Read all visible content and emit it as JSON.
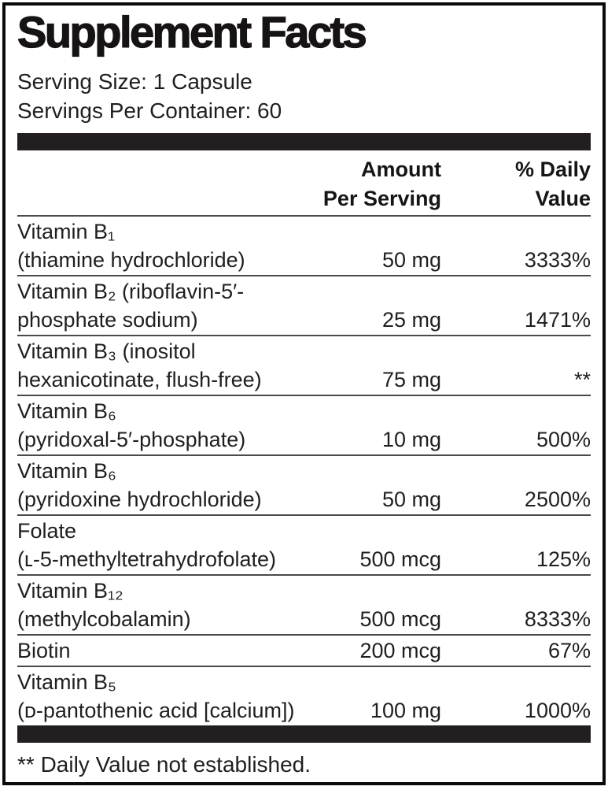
{
  "label": {
    "title": "Supplement Facts",
    "serving_size": "Serving Size: 1 Capsule",
    "servings_per_container": "Servings Per Container: 60",
    "columns": {
      "amount": "Amount\nPer Serving",
      "daily_value": "% Daily\nValue"
    },
    "rows": [
      {
        "name": "Vitamin B₁\n(thiamine hydrochloride)",
        "amount": "50 mg",
        "dv": "3333%"
      },
      {
        "name": "Vitamin B₂ (riboflavin-5′-\nphosphate sodium)",
        "amount": "25 mg",
        "dv": "1471%"
      },
      {
        "name": "Vitamin B₃ (inositol\nhexanicotinate, flush-free)",
        "amount": "75 mg",
        "dv": "**"
      },
      {
        "name": "Vitamin B₆\n(pyridoxal-5′-phosphate)",
        "amount": "10 mg",
        "dv": "500%"
      },
      {
        "name": "Vitamin B₆\n(pyridoxine hydrochloride)",
        "amount": "50 mg",
        "dv": "2500%"
      },
      {
        "name": "Folate\n(ʟ-5-methyltetrahydrofolate)",
        "amount": "500 mcg",
        "dv": "125%"
      },
      {
        "name": "Vitamin B₁₂\n(methylcobalamin)",
        "amount": "500 mcg",
        "dv": "8333%"
      },
      {
        "name": "Biotin",
        "amount": "200 mcg",
        "dv": "67%"
      },
      {
        "name": "Vitamin B₅\n(ᴅ-pantothenic acid [calcium])",
        "amount": "100 mg",
        "dv": "1000%"
      }
    ],
    "footnote": "** Daily Value not established.",
    "colors": {
      "text": "#1f1f1f",
      "bar": "#231f20",
      "border": "#0a0a0a",
      "rule": "#4a4a4a"
    }
  }
}
